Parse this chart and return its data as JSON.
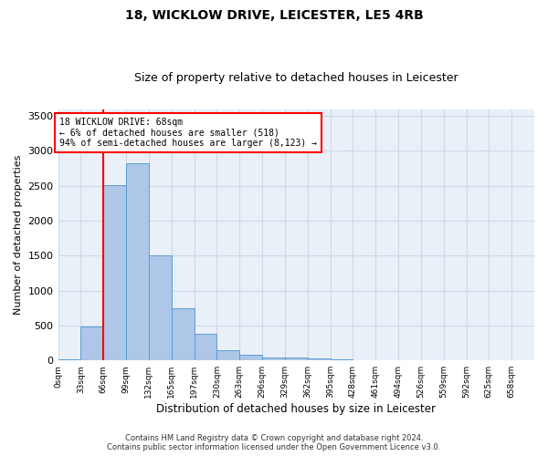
{
  "title_line1": "18, WICKLOW DRIVE, LEICESTER, LE5 4RB",
  "title_line2": "Size of property relative to detached houses in Leicester",
  "xlabel": "Distribution of detached houses by size in Leicester",
  "ylabel": "Number of detached properties",
  "bar_labels": [
    "0sqm",
    "33sqm",
    "66sqm",
    "99sqm",
    "132sqm",
    "165sqm",
    "197sqm",
    "230sqm",
    "263sqm",
    "296sqm",
    "329sqm",
    "362sqm",
    "395sqm",
    "428sqm",
    "461sqm",
    "494sqm",
    "526sqm",
    "559sqm",
    "592sqm",
    "625sqm",
    "658sqm"
  ],
  "bar_values": [
    20,
    480,
    2510,
    2830,
    1510,
    745,
    385,
    145,
    75,
    40,
    40,
    30,
    20,
    0,
    0,
    0,
    0,
    0,
    0,
    0,
    0
  ],
  "bar_color": "#aec6e8",
  "bar_edge_color": "#5a9fd4",
  "vline_x": 2.0,
  "vline_color": "red",
  "annotation_text": "18 WICKLOW DRIVE: 68sqm\n← 6% of detached houses are smaller (518)\n94% of semi-detached houses are larger (8,123) →",
  "annotation_box_color": "white",
  "annotation_box_edge": "red",
  "ylim": [
    0,
    3600
  ],
  "yticks": [
    0,
    500,
    1000,
    1500,
    2000,
    2500,
    3000,
    3500
  ],
  "grid_color": "#d0d8e8",
  "background_color": "#eaf0f8",
  "footer_line1": "Contains HM Land Registry data © Crown copyright and database right 2024.",
  "footer_line2": "Contains public sector information licensed under the Open Government Licence v3.0."
}
